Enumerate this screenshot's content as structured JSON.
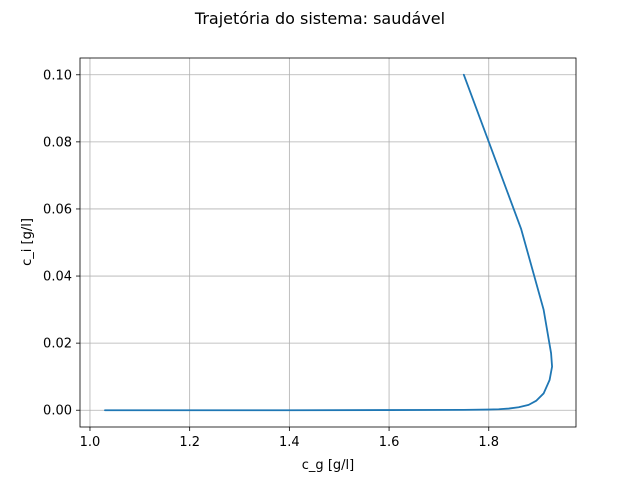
{
  "chart_data": {
    "type": "line",
    "title": "Trajetória do sistema: saudável",
    "xlabel": "c_g [g/l]",
    "ylabel": "c_i [g/l]",
    "xlim": [
      0.98,
      1.975
    ],
    "ylim": [
      -0.005,
      0.105
    ],
    "xticks": [
      1.0,
      1.2,
      1.4,
      1.6,
      1.8
    ],
    "xtick_labels": [
      "1.0",
      "1.2",
      "1.4",
      "1.6",
      "1.8"
    ],
    "yticks": [
      0.0,
      0.02,
      0.04,
      0.06,
      0.08,
      0.1
    ],
    "ytick_labels": [
      "0.00",
      "0.02",
      "0.04",
      "0.06",
      "0.08",
      "0.10"
    ],
    "grid": true,
    "legend": "none",
    "color": "#1f77b4",
    "series": [
      {
        "x": [
          1.75,
          1.8,
          1.865,
          1.91,
          1.925,
          1.927,
          1.922,
          1.91,
          1.895,
          1.88,
          1.86,
          1.84,
          1.82,
          1.8,
          1.75,
          1.6,
          1.4,
          1.2,
          1.03
        ],
        "y": [
          0.1,
          0.08,
          0.054,
          0.03,
          0.017,
          0.013,
          0.009,
          0.005,
          0.0028,
          0.0016,
          0.0009,
          0.0005,
          0.0003,
          0.0002,
          0.0001,
          5e-05,
          0.0,
          0.0,
          0.0
        ]
      }
    ]
  }
}
